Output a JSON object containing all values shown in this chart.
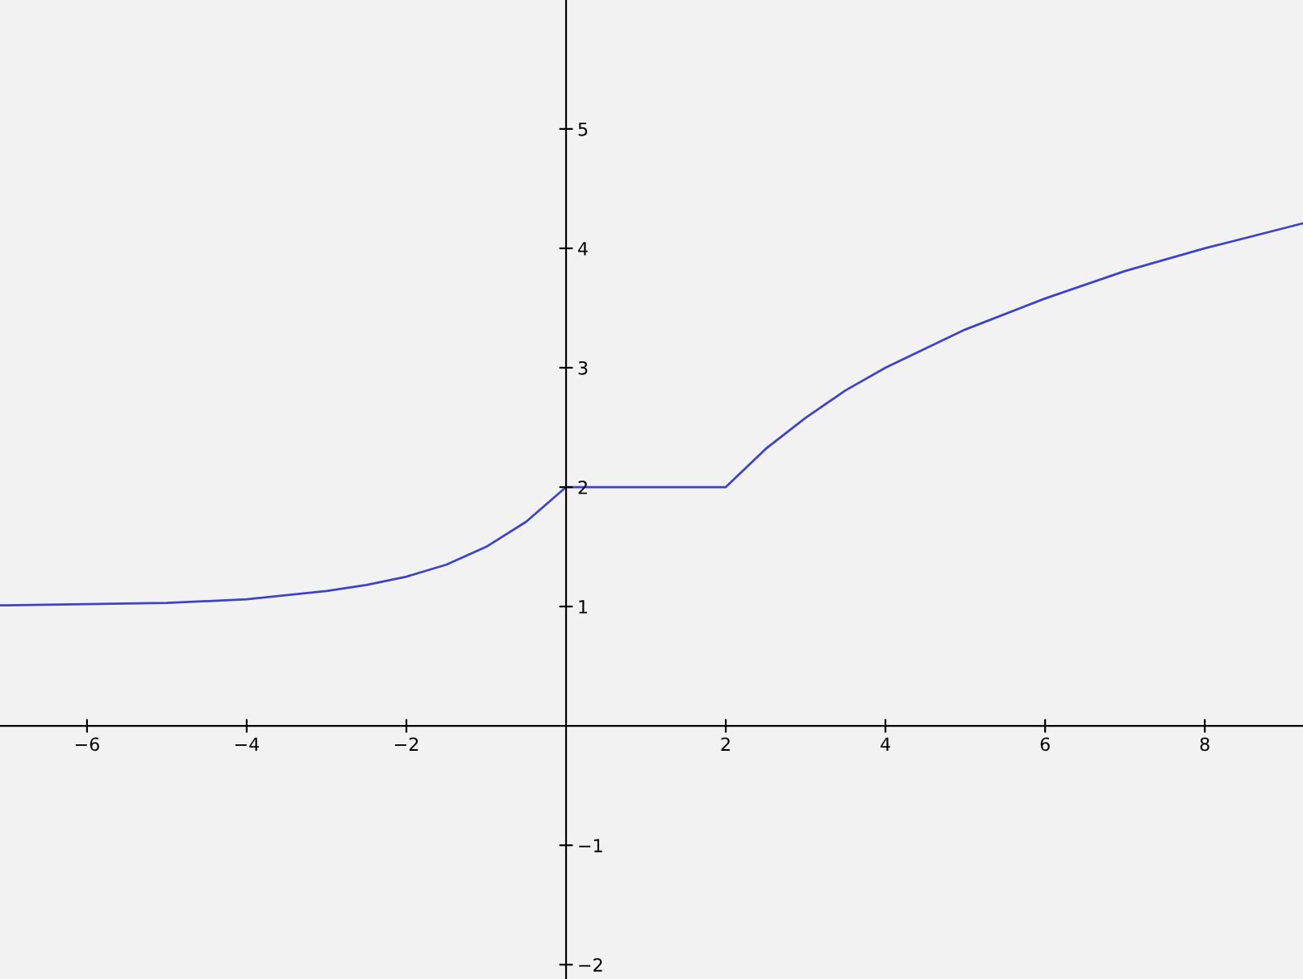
{
  "chart_data": {
    "type": "line",
    "x": [
      -7.09,
      -7,
      -6,
      -5,
      -4,
      -3,
      -2.5,
      -2,
      -1.5,
      -1,
      -0.5,
      0,
      2,
      2.5,
      3,
      3.5,
      4,
      5,
      6,
      7,
      8,
      9,
      9.23
    ],
    "series": [
      {
        "color": "#4040c8",
        "values": [
          1.01,
          1.01,
          1.02,
          1.03,
          1.06,
          1.13,
          1.18,
          1.25,
          1.35,
          1.5,
          1.71,
          2,
          2,
          2.32,
          2.58,
          2.81,
          3,
          3.32,
          3.58,
          3.81,
          4,
          4.17,
          4.21
        ]
      }
    ],
    "xlim": [
      -7.09,
      9.23
    ],
    "ylim": [
      -2.12,
      6.08
    ],
    "xticks": [
      {
        "value": -6,
        "label": "−6"
      },
      {
        "value": -4,
        "label": "−4"
      },
      {
        "value": -2,
        "label": "−2"
      },
      2,
      4,
      6,
      8
    ],
    "yticks": [
      {
        "value": -2,
        "label": "−2"
      },
      {
        "value": -1,
        "label": "−1"
      },
      1,
      2,
      3,
      4,
      5
    ],
    "grid": false,
    "legend": false,
    "marker": "none",
    "line_style": "solid"
  }
}
